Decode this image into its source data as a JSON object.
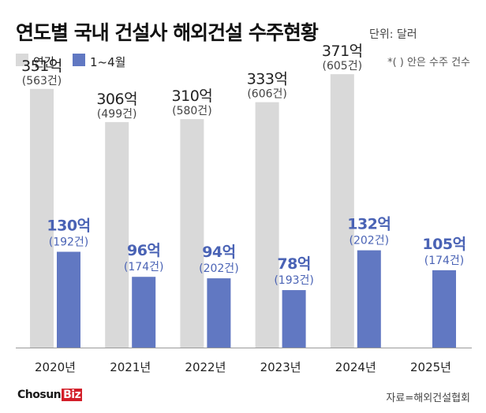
{
  "header": {
    "title": "연도별 국내 건설사 해외건설 수주현황",
    "unit": "단위: 달러"
  },
  "legend": {
    "annual_label": "연간",
    "partial_label": "1~4월",
    "note": "*(  ) 안은 수주 건수"
  },
  "colors": {
    "annual": "#d9d9d9",
    "partial": "#6178c2",
    "partial_text": "#4a63b5",
    "brand_red": "#d31f2a"
  },
  "chart_data": {
    "type": "bar",
    "title": "연도별 국내 건설사 해외건설 수주현황",
    "ylabel": "단위: 달러",
    "xlabel": "",
    "ylim": [
      0,
      400
    ],
    "categories": [
      "2020년",
      "2021년",
      "2022년",
      "2023년",
      "2024년",
      "2025년"
    ],
    "series": [
      {
        "name": "연간",
        "values": [
          351,
          306,
          310,
          333,
          371,
          null
        ],
        "value_labels": [
          "351억",
          "306억",
          "310억",
          "333억",
          "371억",
          ""
        ],
        "count_labels": [
          "(563건)",
          "(499건)",
          "(580건)",
          "(606건)",
          "(605건)",
          ""
        ]
      },
      {
        "name": "1~4월",
        "values": [
          130,
          96,
          94,
          78,
          132,
          105
        ],
        "value_labels": [
          "130억",
          "96억",
          "94억",
          "78억",
          "132억",
          "105억"
        ],
        "count_labels": [
          "(192건)",
          "(174건)",
          "(202건)",
          "(193건)",
          "(202건)",
          "(174건)"
        ]
      }
    ]
  },
  "footer": {
    "logo_part1": "Chosun",
    "logo_part2": "Biz",
    "source": "자료=해외건설협회"
  }
}
